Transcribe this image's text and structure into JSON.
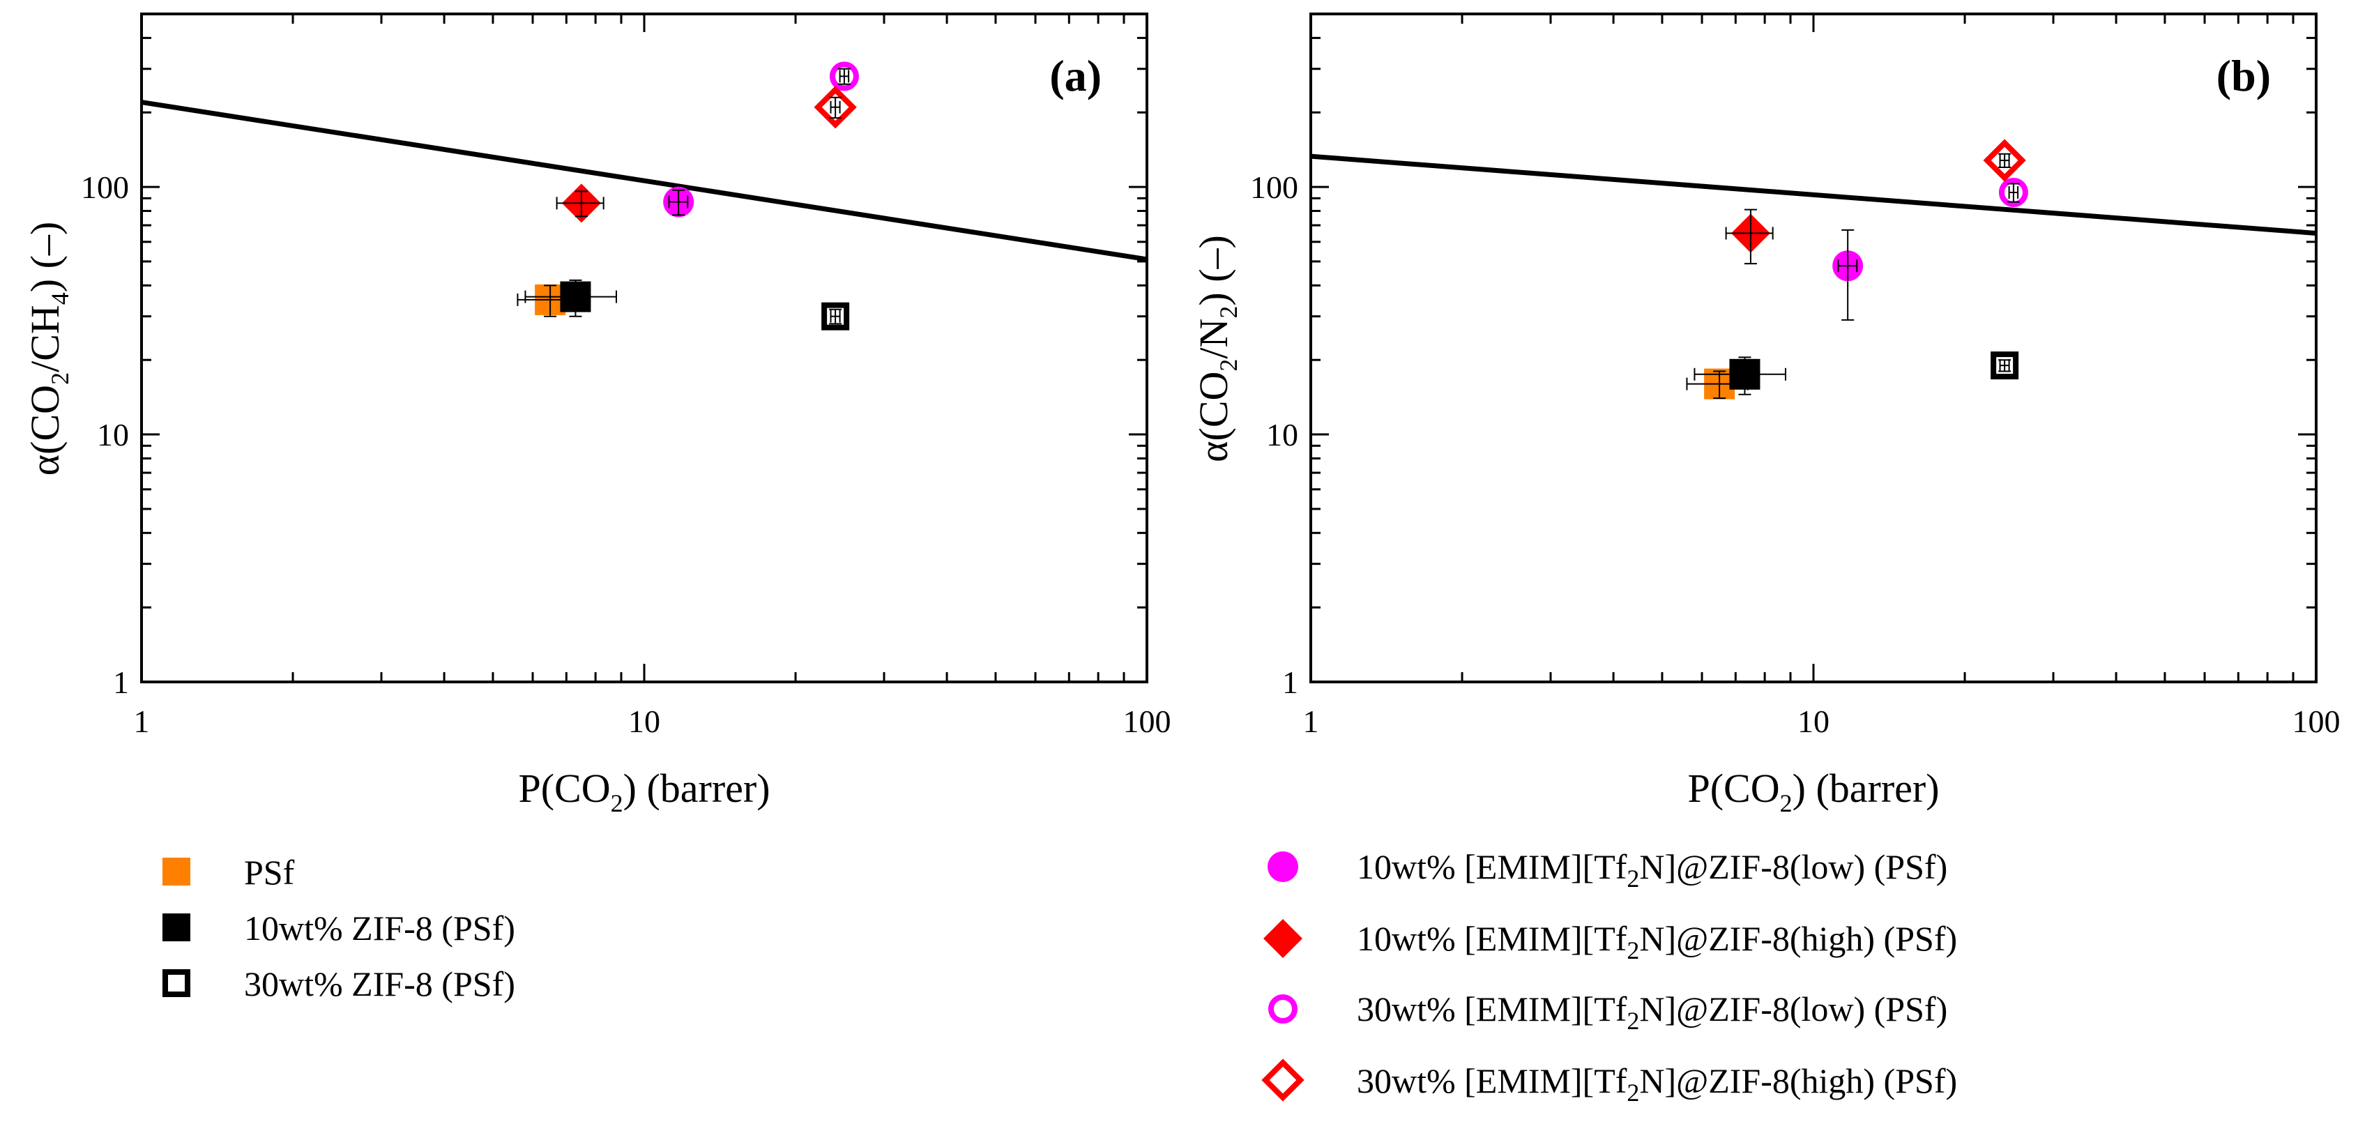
{
  "colors": {
    "psf": "#ff8000",
    "zif": "#000000",
    "magenta": "#ff00ff",
    "red": "#ff0000",
    "line": "#000000"
  },
  "chart_data": [
    {
      "panel": "(a)",
      "type": "scatter",
      "xlabel": "P(CO2) (barrer)",
      "ylabel": "α(CO2/CH4) (–)",
      "xscale": "log",
      "yscale": "log",
      "xlim": [
        1,
        100
      ],
      "ylim": [
        1,
        500
      ],
      "xticks": [
        "1",
        "10",
        "100"
      ],
      "yticks": [
        "1",
        "10",
        "100"
      ],
      "upper_bound": {
        "x": [
          1,
          100
        ],
        "y": [
          220,
          51
        ]
      },
      "series": [
        {
          "name": "PSf",
          "x": 6.5,
          "y": 35,
          "xerr": 0.9,
          "yerr": 5
        },
        {
          "name": "10wt% ZIF-8 (PSf)",
          "x": 7.3,
          "y": 36,
          "xerr": 1.5,
          "yerr": 6
        },
        {
          "name": "30wt% ZIF-8 (PSf)",
          "x": 24,
          "y": 30,
          "xerr": 0.5,
          "yerr": 2
        },
        {
          "name": "10wt% [EMIM][Tf2N]@ZIF-8(low) (PSf)",
          "x": 11.7,
          "y": 87,
          "xerr": 0.5,
          "yerr": 10
        },
        {
          "name": "10wt% [EMIM][Tf2N]@ZIF-8(high) (PSf)",
          "x": 7.5,
          "y": 86,
          "xerr": 0.8,
          "yerr": 10
        },
        {
          "name": "30wt% [EMIM][Tf2N]@ZIF-8(low) (PSf)",
          "x": 25,
          "y": 280,
          "xerr": 0.5,
          "yerr": 20
        },
        {
          "name": "30wt% [EMIM][Tf2N]@ZIF-8(high) (PSf)",
          "x": 24,
          "y": 210,
          "xerr": 0.5,
          "yerr": 20
        }
      ]
    },
    {
      "panel": "(b)",
      "type": "scatter",
      "xlabel": "P(CO2) (barrer)",
      "ylabel": "α(CO2/N2) (–)",
      "xscale": "log",
      "yscale": "log",
      "xlim": [
        1,
        100
      ],
      "ylim": [
        1,
        500
      ],
      "xticks": [
        "1",
        "10",
        "100"
      ],
      "yticks": [
        "1",
        "10",
        "100"
      ],
      "upper_bound": {
        "x": [
          1,
          100
        ],
        "y": [
          133,
          65
        ]
      },
      "series": [
        {
          "name": "PSf",
          "x": 6.5,
          "y": 16,
          "xerr": 0.9,
          "yerr": 2
        },
        {
          "name": "10wt% ZIF-8 (PSf)",
          "x": 7.3,
          "y": 17.5,
          "xerr": 1.5,
          "yerr": 3
        },
        {
          "name": "30wt% ZIF-8 (PSf)",
          "x": 24,
          "y": 19,
          "xerr": 0.5,
          "yerr": 1
        },
        {
          "name": "10wt% [EMIM][Tf2N]@ZIF-8(low) (PSf)",
          "x": 11.7,
          "y": 48,
          "xerr": 0.5,
          "yerr": 19
        },
        {
          "name": "10wt% [EMIM][Tf2N]@ZIF-8(high) (PSf)",
          "x": 7.5,
          "y": 65,
          "xerr": 0.8,
          "yerr": 16
        },
        {
          "name": "30wt% [EMIM][Tf2N]@ZIF-8(low) (PSf)",
          "x": 25,
          "y": 95,
          "xerr": 0.5,
          "yerr": 8
        },
        {
          "name": "30wt% [EMIM][Tf2N]@ZIF-8(high) (PSf)",
          "x": 24,
          "y": 128,
          "xerr": 0.5,
          "yerr": 8
        }
      ]
    }
  ],
  "panels": {
    "a": {
      "tag": "(a)"
    },
    "b": {
      "tag": "(b)"
    }
  },
  "axis_text": {
    "x_main": "P(CO",
    "x_sub": "2",
    "x_tail": ") (barrer)",
    "ya_main1": "α(CO",
    "ya_sub1": "2",
    "ya_main2": "/CH",
    "ya_sub2": "4",
    "ya_tail": ") (–)",
    "yb_main1": "α(CO",
    "yb_sub1": "2",
    "yb_main2": "/N",
    "yb_sub2": "2",
    "yb_tail": ") (–)"
  },
  "legend": {
    "psf": "PSf",
    "zif10": "10wt% ZIF-8 (PSf)",
    "zif30": "30wt% ZIF-8 (PSf)",
    "il10low": {
      "a": "10wt% [EMIM][Tf",
      "sub": "2",
      "b": "N]@ZIF-8(low) (PSf)"
    },
    "il10high": {
      "a": "10wt% [EMIM][Tf",
      "sub": "2",
      "b": "N]@ZIF-8(high) (PSf)"
    },
    "il30low": {
      "a": "30wt% [EMIM][Tf",
      "sub": "2",
      "b": "N]@ZIF-8(low) (PSf)"
    },
    "il30high": {
      "a": "30wt% [EMIM][Tf",
      "sub": "2",
      "b": "N]@ZIF-8(high) (PSf)"
    }
  }
}
